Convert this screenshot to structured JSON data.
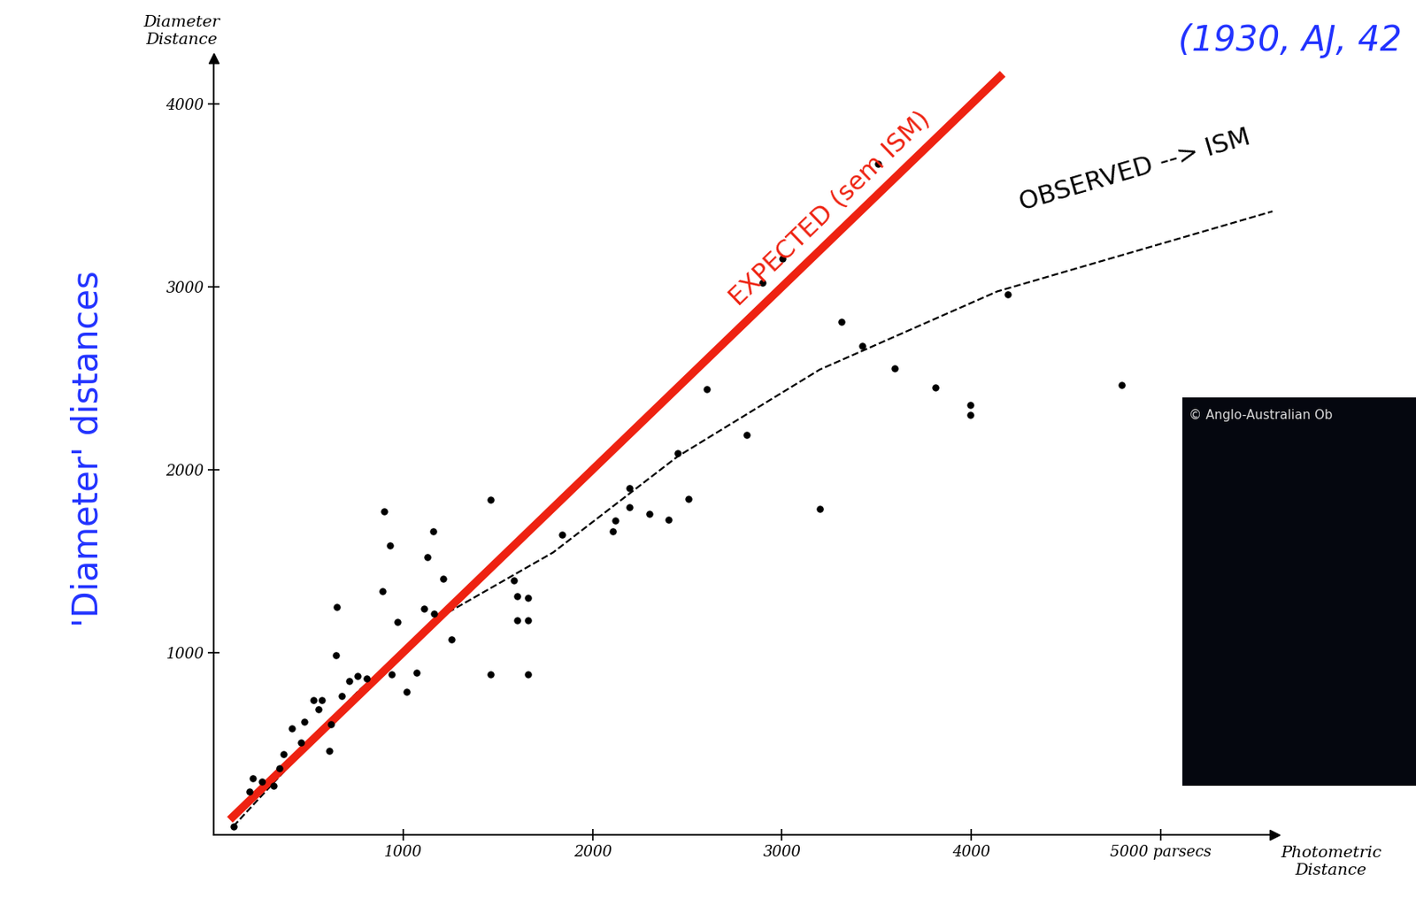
{
  "chart_data": {
    "type": "scatter",
    "title": "(1930, AJ, 42",
    "x_label": "Photometric\nDistance",
    "y_label": "Diameter\nDistance",
    "annotations": [
      {
        "text": "'Diameter' distances",
        "color": "#2233ff"
      },
      {
        "text": "© Anglo-Australian Ob",
        "color": "#d8d8d8"
      }
    ],
    "xlim": [
      0,
      5600
    ],
    "ylim": [
      0,
      4250
    ],
    "xticks": [
      1000,
      2000,
      3000,
      4000,
      {
        "value": 5000,
        "label": "5000 parsecs"
      }
    ],
    "yticks": [
      1000,
      2000,
      3000,
      4000
    ],
    "series": [
      {
        "type": "scatter",
        "color": "#000000",
        "marker": "o",
        "x": [
          103,
          188,
          206,
          253,
          314,
          347,
          366,
          413,
          460,
          478,
          525,
          553,
          572,
          610,
          619,
          643,
          647,
          675,
          713,
          760,
          807,
          891,
          901,
          929,
          938,
          971,
          1018,
          1069,
          1112,
          1126,
          1158,
          1163,
          1210,
          1257,
          1463,
          1463,
          1585,
          1603,
          1603,
          1660,
          1660,
          1660,
          1838,
          2106,
          2120,
          2195,
          2195,
          2298,
          2401,
          2448,
          2505,
          2603,
          2814,
          2899,
          3002,
          3199,
          3316,
          3424,
          3508,
          3597,
          3808,
          3996,
          3996,
          4193,
          4793
        ],
        "values": [
          48,
          238,
          309,
          295,
          271,
          367,
          443,
          586,
          509,
          619,
          738,
          690,
          738,
          462,
          609,
          985,
          1247,
          762,
          843,
          871,
          857,
          1333,
          1771,
          1585,
          881,
          1166,
          786,
          890,
          1238,
          1523,
          1661,
          1214,
          1404,
          1071,
          881,
          1833,
          1395,
          1309,
          1176,
          1176,
          881,
          1300,
          1642,
          1661,
          1723,
          1900,
          1795,
          1756,
          1728,
          2090,
          1842,
          2442,
          2190,
          3023,
          3156,
          1785,
          2808,
          2675,
          3675,
          2556,
          2451,
          2356,
          2299,
          2961,
          2461
        ]
      },
      {
        "type": "line",
        "color": "#000000",
        "line_style": "dashed",
        "x": [
          103,
          760,
          1229,
          1792,
          2448,
          3199,
          4137,
          5590
        ],
        "values": [
          48,
          785,
          1214,
          1547,
          2071,
          2547,
          2975,
          3413
        ],
        "annotation": "OBSERVED --> ISM"
      },
      {
        "type": "line",
        "color": "#ee2211",
        "line_style": "solid",
        "x": [
          100,
          4150
        ],
        "values": [
          100,
          4150
        ],
        "annotation": "EXPECTED (sem ISM)"
      }
    ]
  }
}
